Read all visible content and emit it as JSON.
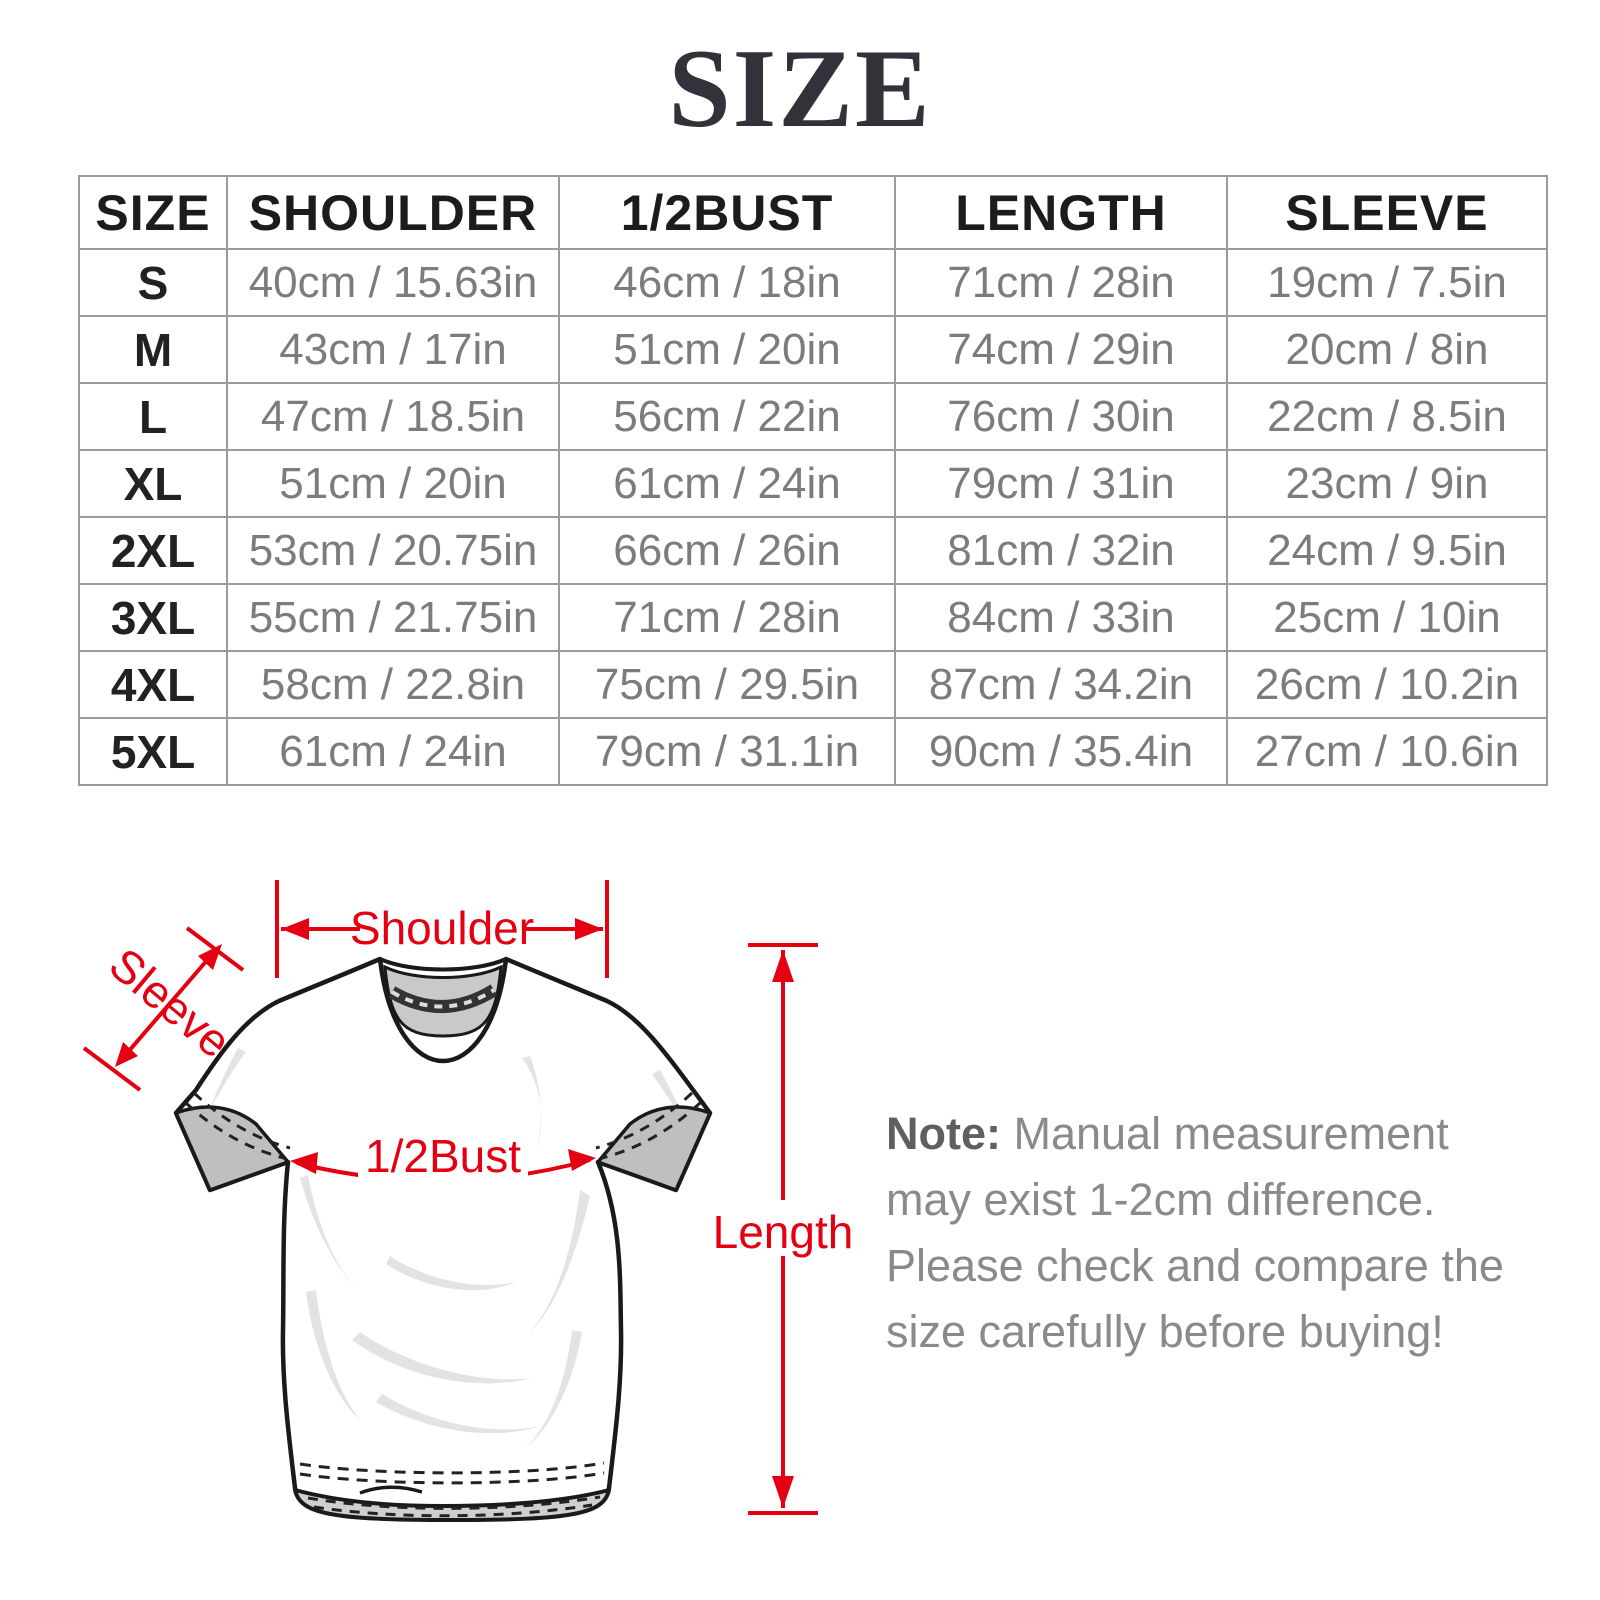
{
  "title": "SIZE",
  "table": {
    "columns": [
      "SIZE",
      "SHOULDER",
      "1/2BUST",
      "LENGTH",
      "SLEEVE"
    ],
    "rows": [
      [
        "S",
        "40cm / 15.63in",
        "46cm / 18in",
        "71cm / 28in",
        "19cm / 7.5in"
      ],
      [
        "M",
        "43cm / 17in",
        "51cm / 20in",
        "74cm / 29in",
        "20cm / 8in"
      ],
      [
        "L",
        "47cm / 18.5in",
        "56cm / 22in",
        "76cm / 30in",
        "22cm / 8.5in"
      ],
      [
        "XL",
        "51cm / 20in",
        "61cm / 24in",
        "79cm / 31in",
        "23cm / 9in"
      ],
      [
        "2XL",
        "53cm / 20.75in",
        "66cm / 26in",
        "81cm / 32in",
        "24cm / 9.5in"
      ],
      [
        "3XL",
        "55cm / 21.75in",
        "71cm / 28in",
        "84cm / 33in",
        "25cm / 10in"
      ],
      [
        "4XL",
        "58cm / 22.8in",
        "75cm / 29.5in",
        "87cm / 34.2in",
        "26cm / 10.2in"
      ],
      [
        "5XL",
        "61cm / 24in",
        "79cm / 31.1in",
        "90cm / 35.4in",
        "27cm / 10.6in"
      ]
    ]
  },
  "diagram": {
    "labels": {
      "shoulder": "Shoulder",
      "sleeve": "Sleeve",
      "half_bust": "1/2Bust",
      "length": "Length"
    }
  },
  "note": {
    "label": "Note:",
    "text": " Manual measurement may exist 1-2cm difference. Please check and compare the size carefully before buying!"
  },
  "colors": {
    "accent_red": "#e50011",
    "table_border": "#9b9b9b",
    "dark_text": "#1c1c1c",
    "gray_text": "#7c7c7c",
    "shirt_outline": "#1a1a1a",
    "shirt_shading": "#c9c9c9"
  }
}
